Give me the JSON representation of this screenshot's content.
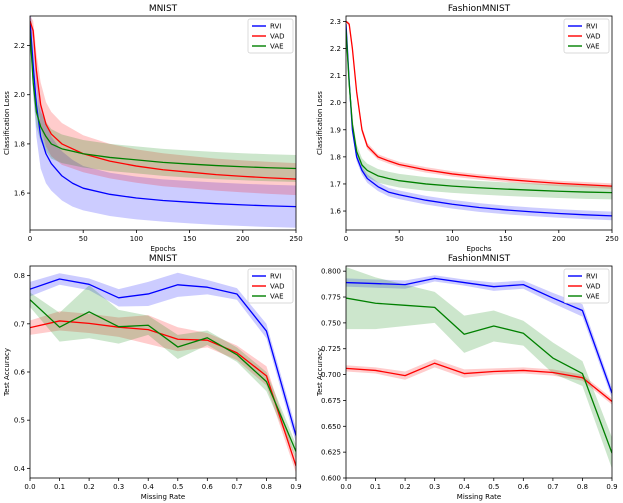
{
  "chart_data": [
    {
      "type": "line",
      "title": "MNIST",
      "xlabel": "Epochs",
      "ylabel": "Classification Loss",
      "xlim": [
        0,
        250
      ],
      "ylim": [
        1.45,
        2.32
      ],
      "xticks": [
        0,
        50,
        100,
        150,
        200,
        250
      ],
      "yticks": [
        1.6,
        1.8,
        2.0,
        2.2
      ],
      "tick_labels_x": [
        "0",
        "50",
        "100",
        "150",
        "200",
        "250"
      ],
      "tick_labels_y": [
        "1.6",
        "1.8",
        "2.0",
        "2.2"
      ],
      "legend": "top-right",
      "series": [
        {
          "name": "RVI",
          "color": "#0000ff",
          "x": [
            0,
            3,
            6,
            10,
            15,
            20,
            30,
            40,
            50,
            75,
            100,
            125,
            150,
            175,
            200,
            225,
            250
          ],
          "values": [
            2.3,
            2.12,
            1.96,
            1.83,
            1.76,
            1.72,
            1.67,
            1.64,
            1.62,
            1.595,
            1.58,
            1.57,
            1.563,
            1.557,
            1.552,
            1.548,
            1.545
          ],
          "band": [
            0.07,
            0.11,
            0.13,
            0.13,
            0.12,
            0.11,
            0.1,
            0.095,
            0.09,
            0.088,
            0.087,
            0.086,
            0.086,
            0.086,
            0.086,
            0.086,
            0.086
          ]
        },
        {
          "name": "VAD",
          "color": "#ff0000",
          "x": [
            0,
            3,
            6,
            10,
            15,
            20,
            30,
            40,
            50,
            75,
            100,
            125,
            150,
            175,
            200,
            225,
            250
          ],
          "values": [
            2.3,
            2.26,
            2.1,
            1.96,
            1.88,
            1.84,
            1.8,
            1.78,
            1.76,
            1.73,
            1.71,
            1.695,
            1.685,
            1.675,
            1.668,
            1.662,
            1.657
          ],
          "band": [
            0.02,
            0.04,
            0.07,
            0.09,
            0.09,
            0.09,
            0.085,
            0.08,
            0.075,
            0.07,
            0.068,
            0.067,
            0.066,
            0.065,
            0.065,
            0.065,
            0.065
          ]
        },
        {
          "name": "VAE",
          "color": "#008000",
          "x": [
            0,
            3,
            6,
            10,
            15,
            20,
            30,
            40,
            50,
            75,
            100,
            125,
            150,
            175,
            200,
            225,
            250
          ],
          "values": [
            2.26,
            2.05,
            1.93,
            1.87,
            1.83,
            1.8,
            1.78,
            1.77,
            1.76,
            1.745,
            1.735,
            1.725,
            1.718,
            1.712,
            1.707,
            1.703,
            1.7
          ],
          "band": [
            0.02,
            0.05,
            0.06,
            0.06,
            0.06,
            0.06,
            0.058,
            0.057,
            0.056,
            0.055,
            0.055,
            0.055,
            0.055,
            0.055,
            0.055,
            0.055,
            0.055
          ]
        }
      ]
    },
    {
      "type": "line",
      "title": "FashionMNIST",
      "xlabel": "Epochs",
      "ylabel": "Classification Loss",
      "xlim": [
        0,
        250
      ],
      "ylim": [
        1.53,
        2.32
      ],
      "xticks": [
        0,
        50,
        100,
        150,
        200,
        250
      ],
      "yticks": [
        1.6,
        1.7,
        1.8,
        1.9,
        2.0,
        2.1,
        2.2,
        2.3
      ],
      "tick_labels_x": [
        "0",
        "50",
        "100",
        "150",
        "200",
        "250"
      ],
      "tick_labels_y": [
        "1.6",
        "1.7",
        "1.8",
        "1.9",
        "2.0",
        "2.1",
        "2.2",
        "2.3"
      ],
      "legend": "top-right",
      "series": [
        {
          "name": "RVI",
          "color": "#0000ff",
          "x": [
            0,
            3,
            6,
            10,
            15,
            20,
            30,
            40,
            50,
            75,
            100,
            125,
            150,
            175,
            200,
            225,
            250
          ],
          "values": [
            2.29,
            2.08,
            1.9,
            1.8,
            1.75,
            1.72,
            1.69,
            1.67,
            1.66,
            1.64,
            1.625,
            1.613,
            1.604,
            1.597,
            1.591,
            1.586,
            1.582
          ],
          "band": [
            0.008,
            0.012,
            0.015,
            0.016,
            0.016,
            0.016,
            0.016,
            0.016,
            0.016,
            0.016,
            0.016,
            0.016,
            0.016,
            0.016,
            0.016,
            0.016,
            0.016
          ]
        },
        {
          "name": "VAD",
          "color": "#ff0000",
          "x": [
            0,
            3,
            6,
            10,
            15,
            20,
            30,
            40,
            50,
            75,
            100,
            125,
            150,
            175,
            200,
            225,
            250
          ],
          "values": [
            2.3,
            2.29,
            2.2,
            2.04,
            1.9,
            1.84,
            1.8,
            1.785,
            1.772,
            1.752,
            1.737,
            1.726,
            1.717,
            1.709,
            1.702,
            1.697,
            1.692
          ],
          "band": [
            0.004,
            0.008,
            0.012,
            0.012,
            0.012,
            0.012,
            0.01,
            0.01,
            0.01,
            0.01,
            0.01,
            0.01,
            0.01,
            0.01,
            0.01,
            0.01,
            0.01
          ]
        },
        {
          "name": "VAE",
          "color": "#008000",
          "x": [
            0,
            3,
            6,
            10,
            15,
            20,
            30,
            40,
            50,
            75,
            100,
            125,
            150,
            175,
            200,
            225,
            250
          ],
          "values": [
            2.27,
            2.07,
            1.92,
            1.82,
            1.77,
            1.75,
            1.73,
            1.72,
            1.712,
            1.7,
            1.692,
            1.686,
            1.681,
            1.677,
            1.673,
            1.67,
            1.668
          ],
          "band": [
            0.01,
            0.02,
            0.025,
            0.025,
            0.025,
            0.025,
            0.025,
            0.025,
            0.025,
            0.025,
            0.025,
            0.025,
            0.025,
            0.025,
            0.025,
            0.025,
            0.025
          ]
        }
      ]
    },
    {
      "type": "line",
      "title": "MNIST",
      "xlabel": "Missing Rate",
      "ylabel": "Test Accuracy",
      "xlim": [
        0,
        0.9
      ],
      "ylim": [
        0.38,
        0.82
      ],
      "xticks": [
        0,
        0.1,
        0.2,
        0.3,
        0.4,
        0.5,
        0.6,
        0.7,
        0.8,
        0.9
      ],
      "yticks": [
        0.4,
        0.5,
        0.6,
        0.7,
        0.8
      ],
      "tick_labels_x": [
        "0.0",
        "0.1",
        "0.2",
        "0.3",
        "0.4",
        "0.5",
        "0.6",
        "0.7",
        "0.8",
        "0.9"
      ],
      "tick_labels_y": [
        "0.4",
        "0.5",
        "0.6",
        "0.7",
        "0.8"
      ],
      "legend": "top-right",
      "series": [
        {
          "name": "RVI",
          "color": "#0000ff",
          "x": [
            0,
            0.1,
            0.2,
            0.3,
            0.4,
            0.5,
            0.6,
            0.7,
            0.8,
            0.9
          ],
          "values": [
            0.772,
            0.793,
            0.782,
            0.754,
            0.762,
            0.781,
            0.776,
            0.762,
            0.685,
            0.468
          ],
          "band": [
            0.015,
            0.012,
            0.012,
            0.018,
            0.025,
            0.025,
            0.015,
            0.012,
            0.015,
            0.015
          ]
        },
        {
          "name": "VAD",
          "color": "#ff0000",
          "x": [
            0,
            0.1,
            0.2,
            0.3,
            0.4,
            0.5,
            0.6,
            0.7,
            0.8,
            0.9
          ],
          "values": [
            0.692,
            0.706,
            0.701,
            0.693,
            0.688,
            0.668,
            0.666,
            0.64,
            0.592,
            0.405
          ],
          "band": [
            0.015,
            0.02,
            0.02,
            0.02,
            0.03,
            0.025,
            0.015,
            0.015,
            0.02,
            0.015
          ]
        },
        {
          "name": "VAE",
          "color": "#008000",
          "x": [
            0,
            0.1,
            0.2,
            0.3,
            0.4,
            0.5,
            0.6,
            0.7,
            0.8,
            0.9
          ],
          "values": [
            0.75,
            0.693,
            0.725,
            0.694,
            0.697,
            0.652,
            0.671,
            0.636,
            0.58,
            0.435
          ],
          "band": [
            0.015,
            0.03,
            0.055,
            0.035,
            0.02,
            0.025,
            0.015,
            0.015,
            0.02,
            0.015
          ]
        }
      ]
    },
    {
      "type": "line",
      "title": "FashionMNIST",
      "xlabel": "Missing Rate",
      "ylabel": "Test Accuracy",
      "xlim": [
        0,
        0.9
      ],
      "ylim": [
        0.6,
        0.805
      ],
      "xticks": [
        0,
        0.1,
        0.2,
        0.3,
        0.4,
        0.5,
        0.6,
        0.7,
        0.8,
        0.9
      ],
      "yticks": [
        0.6,
        0.625,
        0.65,
        0.675,
        0.7,
        0.725,
        0.75,
        0.775,
        0.8
      ],
      "tick_labels_x": [
        "0.0",
        "0.1",
        "0.2",
        "0.3",
        "0.4",
        "0.5",
        "0.6",
        "0.7",
        "0.8",
        "0.9"
      ],
      "tick_labels_y": [
        "0.600",
        "0.625",
        "0.650",
        "0.675",
        "0.700",
        "0.725",
        "0.750",
        "0.775",
        "0.800"
      ],
      "legend": "top-right",
      "series": [
        {
          "name": "RVI",
          "color": "#0000ff",
          "x": [
            0,
            0.1,
            0.2,
            0.3,
            0.4,
            0.5,
            0.6,
            0.7,
            0.8,
            0.9
          ],
          "values": [
            0.789,
            0.788,
            0.787,
            0.793,
            0.789,
            0.785,
            0.787,
            0.774,
            0.762,
            0.682
          ],
          "band": [
            0.004,
            0.004,
            0.004,
            0.003,
            0.003,
            0.004,
            0.004,
            0.005,
            0.006,
            0.005
          ]
        },
        {
          "name": "VAD",
          "color": "#ff0000",
          "x": [
            0,
            0.1,
            0.2,
            0.3,
            0.4,
            0.5,
            0.6,
            0.7,
            0.8,
            0.9
          ],
          "values": [
            0.706,
            0.704,
            0.699,
            0.711,
            0.701,
            0.703,
            0.704,
            0.702,
            0.697,
            0.674
          ],
          "band": [
            0.003,
            0.003,
            0.004,
            0.004,
            0.004,
            0.003,
            0.003,
            0.003,
            0.003,
            0.003
          ]
        },
        {
          "name": "VAE",
          "color": "#008000",
          "x": [
            0,
            0.1,
            0.2,
            0.3,
            0.4,
            0.5,
            0.6,
            0.7,
            0.8,
            0.9
          ],
          "values": [
            0.774,
            0.769,
            0.767,
            0.765,
            0.739,
            0.747,
            0.74,
            0.716,
            0.701,
            0.624
          ],
          "band": [
            0.03,
            0.025,
            0.02,
            0.015,
            0.018,
            0.015,
            0.012,
            0.015,
            0.012,
            0.015
          ]
        }
      ]
    }
  ]
}
